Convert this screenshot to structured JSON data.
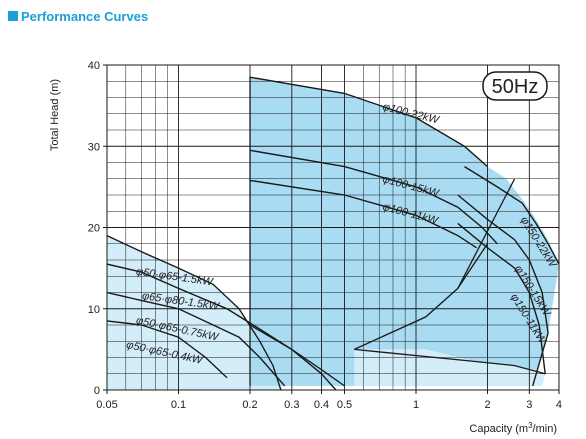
{
  "header": {
    "title": "Performance Curves",
    "accent_color": "#1a9fd8"
  },
  "chart_data": {
    "type": "area",
    "title": "Performance Curves",
    "frequency_badge": "50Hz",
    "xlabel_prefix": "Capacity (m",
    "xlabel_sup": "3",
    "xlabel_suffix": "/min)",
    "ylabel": "Total Head (m)",
    "x_scale": "log",
    "xlim": [
      0.05,
      4
    ],
    "ylim": [
      0,
      40
    ],
    "x_ticks": [
      {
        "value": 0.05,
        "label": "0.05"
      },
      {
        "value": 0.1,
        "label": "0.1"
      },
      {
        "value": 0.2,
        "label": "0.2"
      },
      {
        "value": 0.3,
        "label": "0.3"
      },
      {
        "value": 0.4,
        "label": "0.4"
      },
      {
        "value": 0.5,
        "label": "0.5"
      },
      {
        "value": 1,
        "label": "1"
      },
      {
        "value": 2,
        "label": "2"
      },
      {
        "value": 3,
        "label": "3"
      },
      {
        "value": 4,
        "label": "4"
      }
    ],
    "x_minor": [
      0.06,
      0.07,
      0.08,
      0.09,
      0.6,
      0.7,
      0.8,
      0.9
    ],
    "y_ticks": [
      0,
      10,
      20,
      30,
      40
    ],
    "y_minor_step": 2,
    "grid": true,
    "colors": {
      "fill_dark": "#a9dcf2",
      "fill_light": "#d3edf9",
      "stroke": "#1a1a1a",
      "grid": "#1a1a1a"
    },
    "regions": [
      {
        "name": "small-pumps",
        "fill": "light",
        "points": [
          [
            0.05,
            19
          ],
          [
            0.07,
            17
          ],
          [
            0.1,
            15
          ],
          [
            0.14,
            13
          ],
          [
            0.18,
            10
          ],
          [
            0.22,
            6
          ],
          [
            0.25,
            3
          ],
          [
            0.27,
            0
          ],
          [
            0.05,
            0
          ]
        ]
      },
      {
        "name": "large-pumps",
        "fill": "dark",
        "points": [
          [
            0.2,
            38.5
          ],
          [
            0.5,
            36.5
          ],
          [
            1,
            33.5
          ],
          [
            1.6,
            30
          ],
          [
            2,
            27.5
          ],
          [
            2.4,
            26
          ],
          [
            2.8,
            23.5
          ],
          [
            3.2,
            21
          ],
          [
            3.6,
            18.5
          ],
          [
            4,
            15.5
          ],
          [
            3.6,
            7
          ],
          [
            3.1,
            0.5
          ],
          [
            0.2,
            0.5
          ]
        ]
      },
      {
        "name": "large-150-lower",
        "fill": "light",
        "points": [
          [
            1.1,
            5
          ],
          [
            1.8,
            3.5
          ],
          [
            2.6,
            3
          ],
          [
            3.2,
            2.5
          ],
          [
            3.5,
            2
          ],
          [
            3.4,
            0.5
          ],
          [
            0.55,
            0.5
          ],
          [
            0.55,
            5
          ]
        ]
      }
    ],
    "curves": [
      {
        "label": "φ100-22kW",
        "points": [
          [
            0.2,
            38.5
          ],
          [
            0.5,
            36.5
          ],
          [
            1,
            33.5
          ],
          [
            1.6,
            30
          ],
          [
            2,
            27.5
          ]
        ],
        "label_at": [
          0.72,
          34.5
        ],
        "label_angle": 14
      },
      {
        "label": "φ100-15kW",
        "points": [
          [
            0.2,
            29.5
          ],
          [
            0.5,
            27.5
          ],
          [
            1,
            25
          ],
          [
            1.5,
            22.5
          ],
          [
            1.9,
            20
          ],
          [
            2.2,
            18
          ]
        ],
        "label_at": [
          0.72,
          25.6
        ],
        "label_angle": 15
      },
      {
        "label": "φ100-11kW",
        "points": [
          [
            0.2,
            25.8
          ],
          [
            0.5,
            24
          ],
          [
            1,
            21.5
          ],
          [
            1.5,
            19
          ],
          [
            1.8,
            17.5
          ]
        ],
        "label_at": [
          0.72,
          22.2
        ],
        "label_angle": 15
      },
      {
        "label": "φ150-22kW",
        "points": [
          [
            1.6,
            27.5
          ],
          [
            2.2,
            25
          ],
          [
            2.8,
            23
          ],
          [
            3.2,
            20.5
          ],
          [
            3.6,
            18
          ],
          [
            4,
            15.5
          ]
        ],
        "label_at": [
          2.75,
          21
        ],
        "label_angle": 58
      },
      {
        "label": "φ150-15kW",
        "points": [
          [
            1.5,
            24
          ],
          [
            2,
            21
          ],
          [
            2.6,
            18.5
          ],
          [
            3,
            16
          ],
          [
            3.4,
            12
          ],
          [
            3.6,
            7
          ],
          [
            3.1,
            0.5
          ]
        ],
        "label_at": [
          2.6,
          15
        ],
        "label_angle": 58
      },
      {
        "label": "φ150-11kW",
        "points": [
          [
            1.5,
            20.5
          ],
          [
            2,
            17.5
          ],
          [
            2.6,
            15
          ],
          [
            3,
            12
          ],
          [
            3.3,
            8
          ],
          [
            3.5,
            2
          ]
        ],
        "label_at": [
          2.5,
          11.5
        ],
        "label_angle": 58
      },
      {
        "label": "φ50·φ65-1.5kW",
        "points": [
          [
            0.05,
            19
          ],
          [
            0.07,
            17
          ],
          [
            0.1,
            15
          ],
          [
            0.14,
            13
          ],
          [
            0.18,
            10
          ],
          [
            0.22,
            6
          ],
          [
            0.25,
            3
          ],
          [
            0.27,
            0
          ]
        ],
        "label_at": [
          0.066,
          14.2
        ],
        "label_angle": 8
      },
      {
        "label": "φ65·φ80-1.5kW",
        "points": [
          [
            0.05,
            15.5
          ],
          [
            0.07,
            14.5
          ],
          [
            0.1,
            12.5
          ],
          [
            0.16,
            10
          ],
          [
            0.22,
            7.5
          ],
          [
            0.3,
            5
          ],
          [
            0.4,
            2
          ],
          [
            0.46,
            0
          ]
        ],
        "label_at": [
          0.07,
          11.2
        ],
        "label_angle": 8
      },
      {
        "label": "φ50·φ65-0.75kW",
        "points": [
          [
            0.05,
            12
          ],
          [
            0.07,
            11
          ],
          [
            0.1,
            10
          ],
          [
            0.14,
            8
          ],
          [
            0.18,
            6.5
          ],
          [
            0.22,
            4
          ],
          [
            0.28,
            0.5
          ]
        ],
        "label_at": [
          0.066,
          8.2
        ],
        "label_angle": 12
      },
      {
        "label": "φ50·φ65-0.4kW",
        "points": [
          [
            0.05,
            8.5
          ],
          [
            0.07,
            8
          ],
          [
            0.1,
            6.5
          ],
          [
            0.13,
            4
          ],
          [
            0.16,
            1.5
          ]
        ],
        "label_at": [
          0.06,
          5.2
        ],
        "label_angle": 12
      }
    ],
    "boundaries": [
      {
        "name": "large-left-edge",
        "points": [
          [
            0.2,
            38.5
          ],
          [
            0.2,
            0.5
          ]
        ]
      },
      {
        "name": "large-lower-diagonal",
        "points": [
          [
            0.55,
            5
          ],
          [
            1.1,
            9
          ],
          [
            1.5,
            12.5
          ],
          [
            1.8,
            16
          ],
          [
            2,
            18
          ]
        ]
      },
      {
        "name": "large-150-lower-edge",
        "points": [
          [
            0.55,
            5
          ],
          [
            1.8,
            3.5
          ],
          [
            2.6,
            3
          ],
          [
            3.5,
            2
          ]
        ]
      },
      {
        "name": "large-150-divider",
        "points": [
          [
            1.5,
            12.5
          ],
          [
            2.6,
            26
          ]
        ]
      },
      {
        "name": "large-bottom-arc",
        "points": [
          [
            0.2,
            8
          ],
          [
            0.3,
            5
          ],
          [
            0.4,
            2.5
          ],
          [
            0.5,
            0.5
          ]
        ]
      }
    ]
  }
}
